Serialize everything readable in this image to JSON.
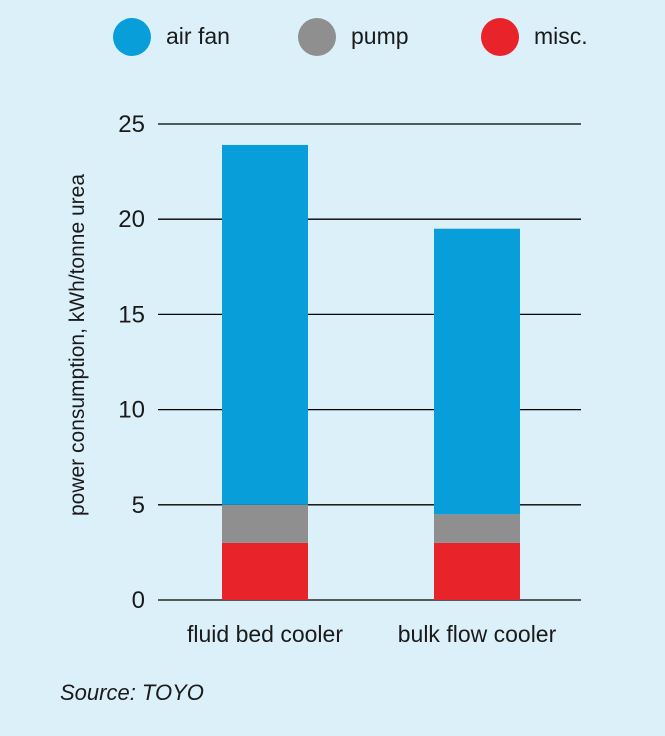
{
  "chart_data": {
    "type": "bar",
    "stacked": true,
    "categories": [
      "fluid bed cooler",
      "bulk flow cooler"
    ],
    "series": [
      {
        "name": "misc.",
        "color": "#e8232a",
        "values": [
          3.0,
          3.0
        ]
      },
      {
        "name": "pump",
        "color": "#8f8f8f",
        "values": [
          2.0,
          1.5
        ]
      },
      {
        "name": "air fan",
        "color": "#079ed9",
        "values": [
          18.9,
          15.0
        ]
      }
    ],
    "legend_order": [
      "air fan",
      "pump",
      "misc."
    ],
    "legend_position": "top",
    "ylabel": "power consumption, kWh/tonne urea",
    "xlabel": "",
    "ylim": [
      0,
      25
    ],
    "yticks": [
      0,
      5,
      10,
      15,
      20,
      25
    ],
    "grid": true
  },
  "source": "Source: TOYO",
  "colors": {
    "background": "#dcf0fa",
    "text": "#1a1a1a",
    "grid": "#000000"
  }
}
